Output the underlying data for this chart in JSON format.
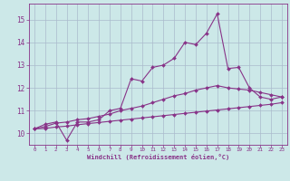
{
  "bg_color": "#cce8e8",
  "line_color": "#883388",
  "grid_color": "#aabbcc",
  "xlabel": "Windchill (Refroidissement éolien,°C)",
  "xlabel_color": "#883388",
  "tick_color": "#883388",
  "xlim": [
    -0.5,
    23.5
  ],
  "ylim": [
    9.5,
    15.7
  ],
  "yticks": [
    10,
    11,
    12,
    13,
    14,
    15
  ],
  "xticks": [
    0,
    1,
    2,
    3,
    4,
    5,
    6,
    7,
    8,
    9,
    10,
    11,
    12,
    13,
    14,
    15,
    16,
    17,
    18,
    19,
    20,
    21,
    22,
    23
  ],
  "line1_x": [
    0,
    1,
    2,
    3,
    4,
    5,
    6,
    7,
    8,
    9,
    10,
    11,
    12,
    13,
    14,
    15,
    16,
    17,
    18,
    19,
    20,
    21,
    22,
    23
  ],
  "line1_y": [
    10.2,
    10.4,
    10.5,
    9.7,
    10.5,
    10.5,
    10.6,
    11.0,
    11.1,
    12.4,
    12.3,
    12.9,
    13.0,
    13.3,
    14.0,
    13.9,
    14.4,
    15.25,
    12.85,
    12.9,
    12.0,
    11.6,
    11.5,
    11.6
  ],
  "line2_x": [
    0,
    1,
    2,
    3,
    4,
    5,
    6,
    7,
    8,
    9,
    10,
    11,
    12,
    13,
    14,
    15,
    16,
    17,
    18,
    19,
    20,
    21,
    22,
    23
  ],
  "line2_y": [
    10.2,
    10.3,
    10.45,
    10.5,
    10.6,
    10.65,
    10.75,
    10.85,
    11.0,
    11.1,
    11.2,
    11.35,
    11.5,
    11.65,
    11.75,
    11.9,
    12.0,
    12.1,
    12.0,
    11.95,
    11.9,
    11.8,
    11.7,
    11.6
  ],
  "line3_x": [
    0,
    1,
    2,
    3,
    4,
    5,
    6,
    7,
    8,
    9,
    10,
    11,
    12,
    13,
    14,
    15,
    16,
    17,
    18,
    19,
    20,
    21,
    22,
    23
  ],
  "line3_y": [
    10.2,
    10.22,
    10.28,
    10.32,
    10.38,
    10.43,
    10.48,
    10.53,
    10.58,
    10.63,
    10.68,
    10.73,
    10.78,
    10.83,
    10.88,
    10.93,
    10.98,
    11.03,
    11.08,
    11.13,
    11.18,
    11.23,
    11.28,
    11.35
  ]
}
